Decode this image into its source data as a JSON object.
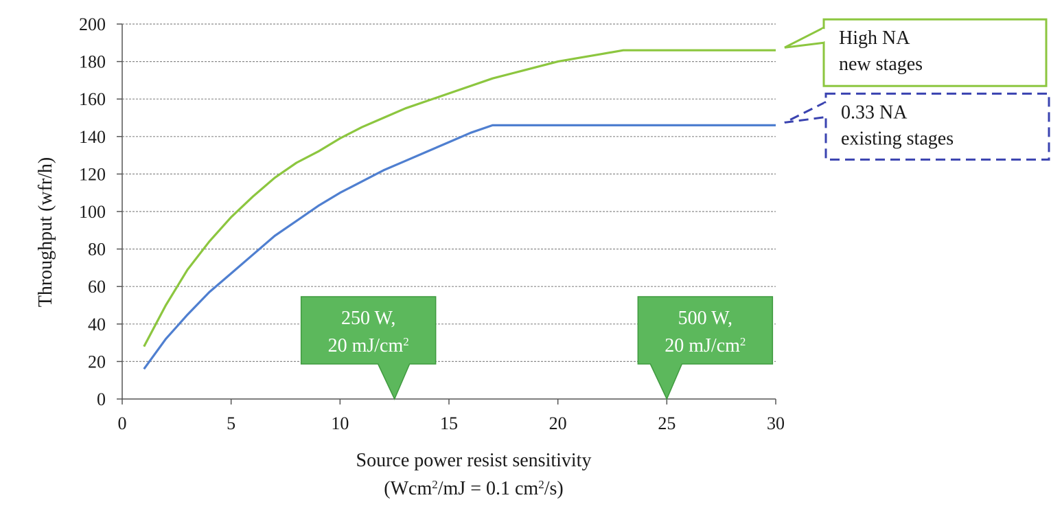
{
  "chart_data": {
    "type": "line",
    "xlabel": "Source power resist sensitivity",
    "xlabel_line2_parts": [
      "(Wcm",
      "2",
      "/mJ = 0.1 cm",
      "2",
      "/s)"
    ],
    "ylabel": "Throughput (wfr/h)",
    "xlim": [
      0,
      30
    ],
    "ylim": [
      0,
      200
    ],
    "x_ticks": [
      0,
      5,
      10,
      15,
      20,
      25,
      30
    ],
    "y_ticks": [
      0,
      20,
      40,
      60,
      80,
      100,
      120,
      140,
      160,
      180,
      200
    ],
    "grid": true,
    "series": [
      {
        "key": "high_na",
        "color": "#8cc63f",
        "x": [
          1,
          2,
          3,
          4,
          5,
          6,
          7,
          8,
          9,
          10,
          11,
          12,
          13,
          14,
          15,
          16,
          17,
          18,
          19,
          20,
          21,
          22,
          23,
          24,
          25,
          26,
          27,
          28,
          29,
          30
        ],
        "y": [
          28,
          50,
          69,
          84,
          97,
          108,
          118,
          126,
          132,
          139,
          145,
          150,
          155,
          159,
          163,
          167,
          171,
          174,
          177,
          180,
          182,
          184,
          186,
          186,
          186,
          186,
          186,
          186,
          186,
          186
        ]
      },
      {
        "key": "na_033",
        "color": "#4f7fd0",
        "x": [
          1,
          2,
          3,
          4,
          5,
          6,
          7,
          8,
          9,
          10,
          11,
          12,
          13,
          14,
          15,
          16,
          17,
          18,
          19,
          20,
          21,
          22,
          23,
          24,
          25,
          26,
          27,
          28,
          29,
          30
        ],
        "y": [
          16,
          32,
          45,
          57,
          67,
          77,
          87,
          95,
          103,
          110,
          116,
          122,
          127,
          132,
          137,
          142,
          146,
          146,
          146,
          146,
          146,
          146,
          146,
          146,
          146,
          146,
          146,
          146,
          146,
          146
        ]
      }
    ],
    "callouts": [
      {
        "series": "high_na",
        "lines": [
          "High NA",
          "new stages"
        ],
        "border_color": "#8cc63f",
        "style": "solid"
      },
      {
        "series": "na_033",
        "lines": [
          "0.33 NA",
          "existing stages"
        ],
        "border_color": "#3a43b0",
        "style": "dashed"
      }
    ],
    "annotations": [
      {
        "x": 12.5,
        "line1": "250 W,",
        "line2_parts": [
          "20 mJ/cm",
          "2"
        ],
        "color": "#5cb85c"
      },
      {
        "x": 25,
        "line1": "500 W,",
        "line2_parts": [
          "20 mJ/cm",
          "2"
        ],
        "color": "#5cb85c"
      }
    ]
  }
}
